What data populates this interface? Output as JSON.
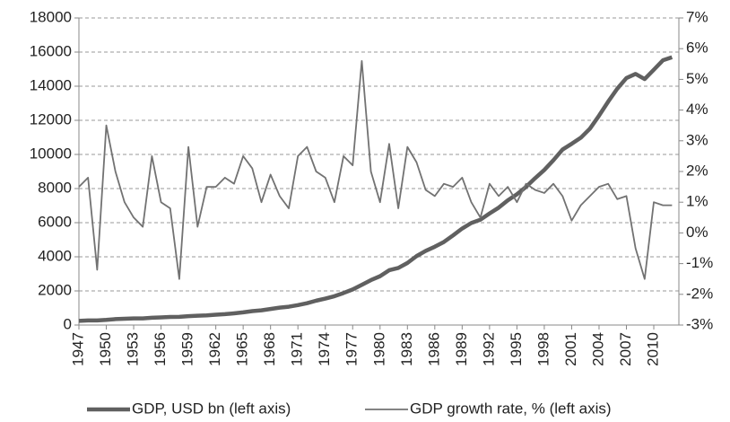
{
  "chart_data": {
    "type": "line",
    "x": [
      1947,
      1948,
      1949,
      1950,
      1951,
      1952,
      1953,
      1954,
      1955,
      1956,
      1957,
      1958,
      1959,
      1960,
      1961,
      1962,
      1963,
      1964,
      1965,
      1966,
      1967,
      1968,
      1969,
      1970,
      1971,
      1972,
      1973,
      1974,
      1975,
      1976,
      1977,
      1978,
      1979,
      1980,
      1981,
      1982,
      1983,
      1984,
      1985,
      1986,
      1987,
      1988,
      1989,
      1990,
      1991,
      1992,
      1993,
      1994,
      1995,
      1996,
      1997,
      1998,
      1999,
      2000,
      2001,
      2002,
      2003,
      2004,
      2005,
      2006,
      2007,
      2008,
      2009,
      2010,
      2011,
      2012
    ],
    "series": [
      {
        "name": "GDP, USD bn (left axis)",
        "color": "#606060",
        "axis": "y",
        "values": [
          244,
          270,
          272,
          300,
          347,
          367,
          389,
          391,
          426,
          450,
          474,
          481,
          522,
          543,
          563,
          605,
          638,
          686,
          744,
          815,
          861,
          942,
          1019,
          1075,
          1167,
          1282,
          1428,
          1548,
          1688,
          1877,
          2086,
          2357,
          2632,
          2862,
          3211,
          3345,
          3638,
          4040,
          4346,
          4590,
          4870,
          5252,
          5657,
          5980,
          6174,
          6539,
          6879,
          7309,
          7664,
          8100,
          8609,
          9089,
          9661,
          10285,
          10622,
          10978,
          11511,
          12275,
          13094,
          13856,
          14478,
          14719,
          14419,
          14964,
          15518,
          15700
        ]
      },
      {
        "name": "GDP growth rate, % (left axis)",
        "color": "#727272",
        "axis": "y2",
        "values": [
          1.5,
          1.8,
          -1.2,
          3.5,
          2.0,
          1.0,
          0.5,
          0.2,
          2.5,
          1.0,
          0.8,
          -1.5,
          2.8,
          0.2,
          1.5,
          1.5,
          1.8,
          1.6,
          2.5,
          2.1,
          1.0,
          1.9,
          1.2,
          0.8,
          2.5,
          2.8,
          2.0,
          1.8,
          1.0,
          2.5,
          2.2,
          5.6,
          2.0,
          1.0,
          2.9,
          0.8,
          2.8,
          2.3,
          1.4,
          1.2,
          1.6,
          1.5,
          1.8,
          1.0,
          0.5,
          1.6,
          1.2,
          1.5,
          1.0,
          1.6,
          1.4,
          1.3,
          1.6,
          1.2,
          0.4,
          0.9,
          1.2,
          1.5,
          1.6,
          1.1,
          1.2,
          -0.5,
          -1.5,
          1.0,
          0.9,
          0.9
        ]
      }
    ],
    "xlim": [
      1947,
      2012.75
    ],
    "xticks": [
      1947,
      1950,
      1953,
      1956,
      1959,
      1962,
      1965,
      1968,
      1971,
      1974,
      1977,
      1980,
      1983,
      1986,
      1989,
      1992,
      1995,
      1998,
      2001,
      2004,
      2007,
      2010
    ],
    "ylim": [
      0,
      18000
    ],
    "yticks": [
      0,
      2000,
      4000,
      6000,
      8000,
      10000,
      12000,
      14000,
      16000,
      18000
    ],
    "y2lim": [
      -3,
      7
    ],
    "y2ticks": [
      {
        "value": -3,
        "label": "-3%"
      },
      {
        "value": -2,
        "label": "-2%"
      },
      {
        "value": -1,
        "label": "-1%"
      },
      {
        "value": 0,
        "label": "0%"
      },
      {
        "value": 1,
        "label": "1%"
      },
      {
        "value": 2,
        "label": "2%"
      },
      {
        "value": 3,
        "label": "3%"
      },
      {
        "value": 4,
        "label": "4%"
      },
      {
        "value": 5,
        "label": "5%"
      },
      {
        "value": 6,
        "label": "6%"
      },
      {
        "value": 7,
        "label": "7%"
      }
    ],
    "grid": true
  }
}
